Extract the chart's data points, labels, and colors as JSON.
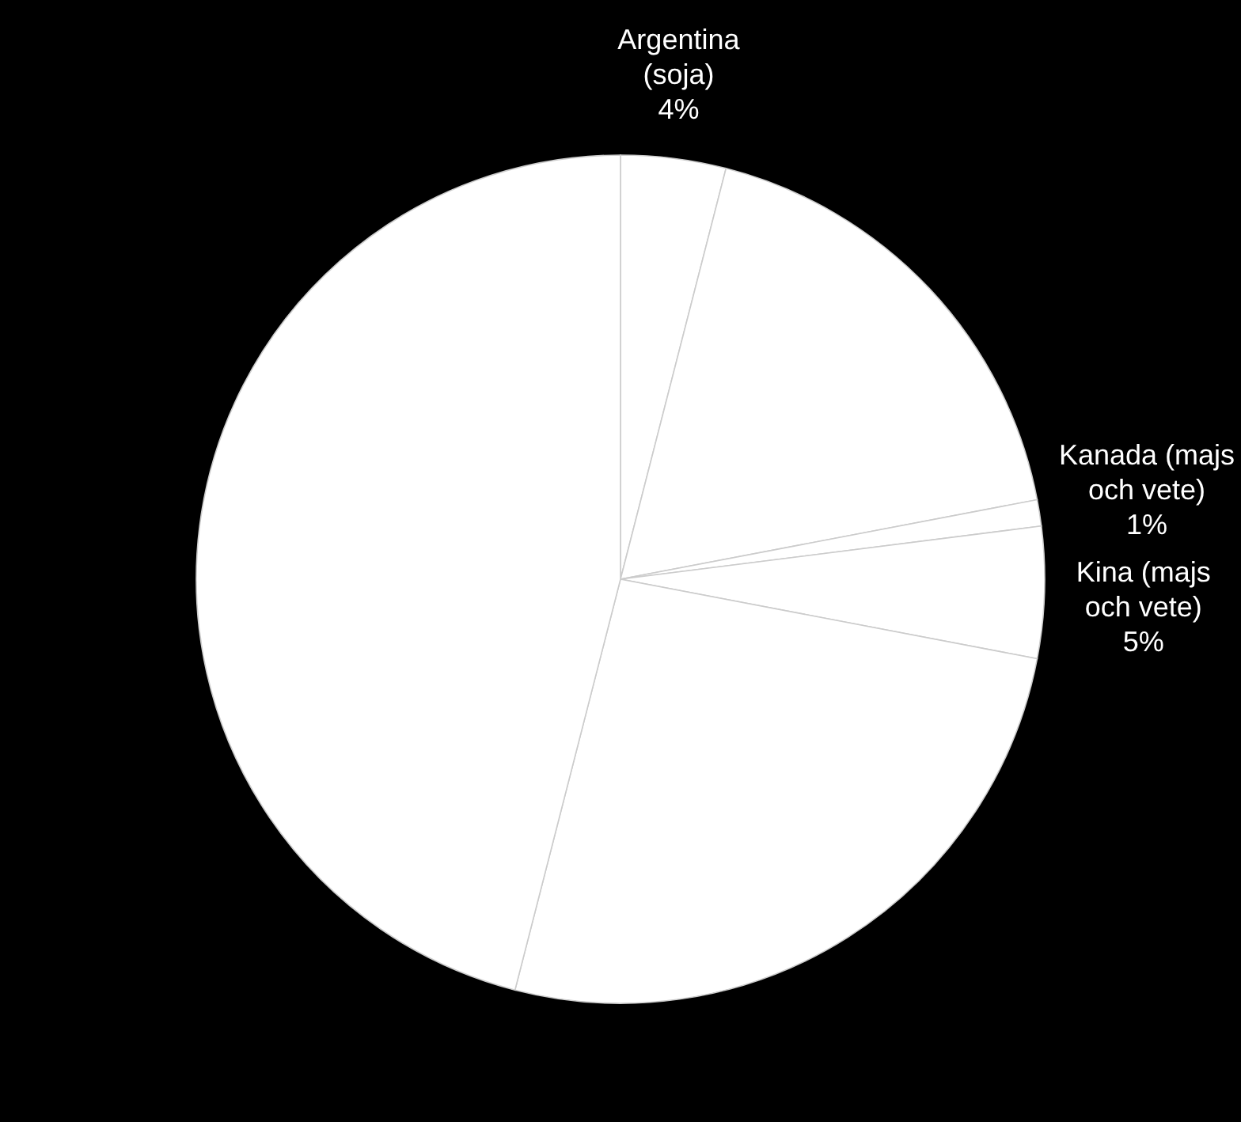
{
  "chart_data": {
    "type": "pie",
    "categories": [
      "Argentina (soja)",
      null,
      "Kanada (majs och vete)",
      "Kina (majs och vete)",
      null,
      null
    ],
    "values": [
      4,
      18,
      1,
      5,
      26,
      46
    ],
    "value_labels": [
      "4%",
      null,
      "1%",
      "5%",
      null,
      null
    ],
    "colors": [
      "#ffffff",
      "#ffffff",
      "#ffffff",
      "#ffffff",
      "#ffffff",
      "#ffffff"
    ]
  }
}
